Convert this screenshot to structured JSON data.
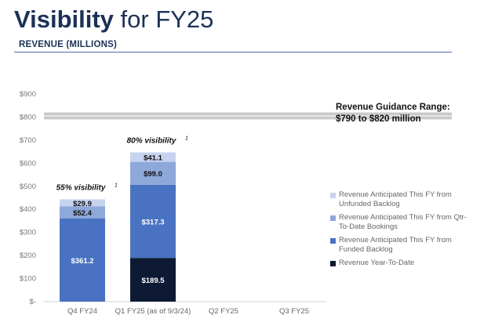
{
  "header": {
    "title_bold": "Visibility",
    "title_rest": " for FY25",
    "subtitle": "REVENUE (MILLIONS)"
  },
  "guidance": {
    "line1": "Revenue Guidance Range:",
    "line2": "$790 to $820 million"
  },
  "chart_data": {
    "type": "bar",
    "stacked": true,
    "categories": [
      "Q4 FY24",
      "Q1 FY25 (as of 9/3/24)",
      "Q2 FY25",
      "Q3 FY25"
    ],
    "series": [
      {
        "name": "Revenue Year-To-Date",
        "color": "#0e1a33",
        "values": [
          null,
          189.5,
          null,
          null
        ],
        "labels": [
          "",
          "$189.5",
          "",
          ""
        ]
      },
      {
        "name": "Revenue Anticipated This FY from Funded Backlog",
        "color": "#4a72c2",
        "values": [
          361.2,
          317.3,
          null,
          null
        ],
        "labels": [
          "$361.2",
          "$317.3",
          "",
          ""
        ]
      },
      {
        "name": "Revenue Anticipated This FY from Qtr-To-Date Bookings",
        "color": "#8ea8da",
        "values": [
          52.4,
          99.0,
          null,
          null
        ],
        "labels": [
          "$52.4",
          "$99.0",
          "",
          ""
        ]
      },
      {
        "name": "Revenue Anticipated This FY from Unfunded Backlog",
        "color": "#c5d3ee",
        "values": [
          29.9,
          41.1,
          null,
          null
        ],
        "labels": [
          "$29.9",
          "$41.1",
          "",
          ""
        ]
      }
    ],
    "legend_order": [
      3,
      2,
      1,
      0
    ],
    "legend_placement": "right",
    "visibility_annotations": [
      {
        "category": "Q4 FY24",
        "text": "55% visibility",
        "sup": "1"
      },
      {
        "category": "Q1 FY25 (as of 9/3/24)",
        "text": "80% visibility",
        "sup": "1"
      }
    ],
    "guidance_band": {
      "low": 790,
      "high": 820,
      "color": "#c9c9c9"
    },
    "ylim": [
      0,
      900
    ],
    "yticks": [
      0,
      100,
      200,
      300,
      400,
      500,
      600,
      700,
      800,
      900
    ],
    "ytick_labels": [
      "$-",
      "$100",
      "$200",
      "$300",
      "$400",
      "$500",
      "$600",
      "$700",
      "$800",
      "$900"
    ],
    "grid": false
  }
}
